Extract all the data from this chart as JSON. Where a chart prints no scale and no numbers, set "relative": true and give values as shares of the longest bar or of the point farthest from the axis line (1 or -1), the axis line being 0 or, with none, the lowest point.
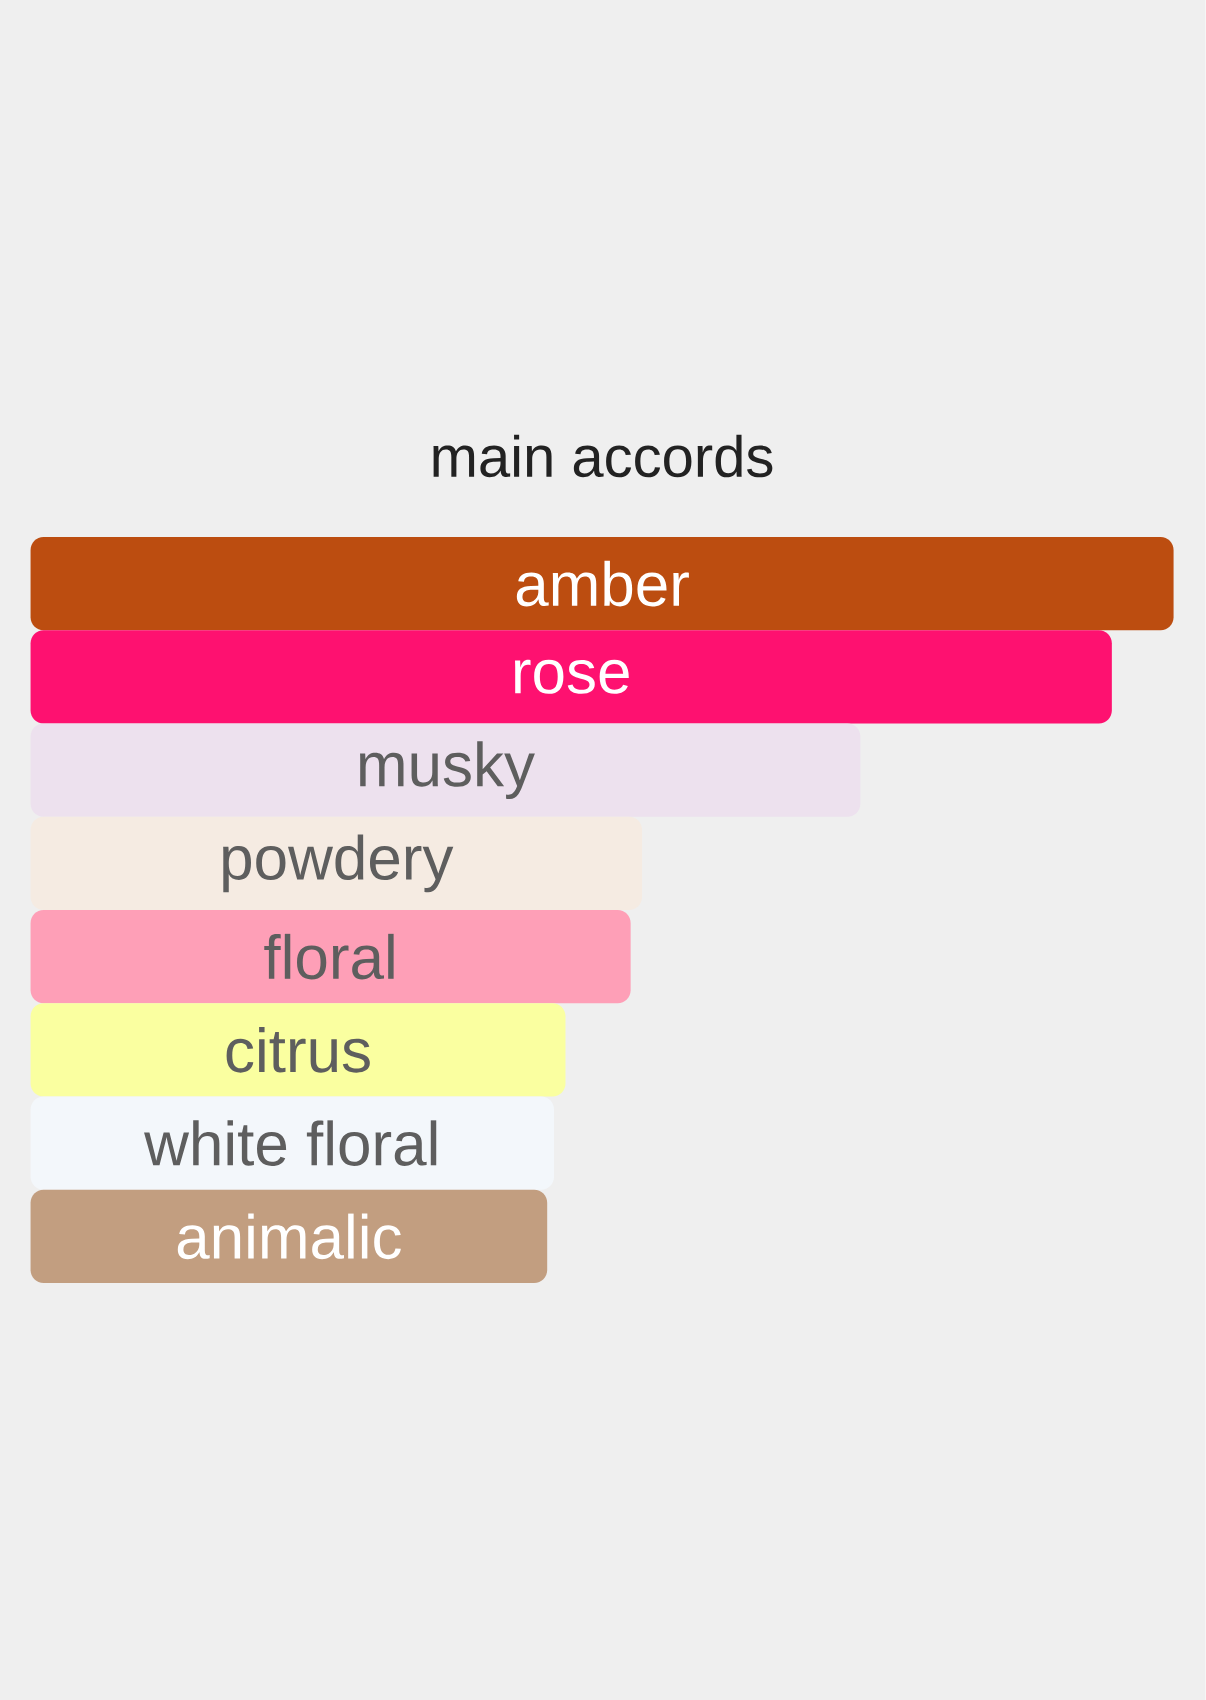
{
  "chart_data": {
    "type": "bar",
    "orientation": "horizontal",
    "relative": true,
    "title": "main accords",
    "categories": [
      "amber",
      "rose",
      "musky",
      "powdery",
      "floral",
      "citrus",
      "white floral",
      "animalic"
    ],
    "values": [
      1,
      0.946,
      0.726,
      0.535,
      0.525,
      0.468,
      0.458,
      0.452
    ],
    "colors": [
      "#bc4d10",
      "#fe1170",
      "#ede1ee",
      "#f5ebe2",
      "#fe9fb7",
      "#faffa0",
      "#f3f7fb",
      "#c29e80"
    ]
  }
}
